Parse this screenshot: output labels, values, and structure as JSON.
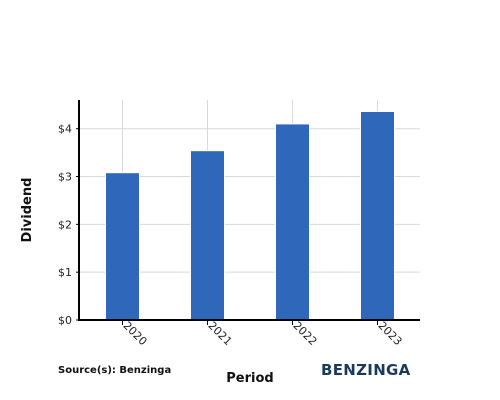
{
  "chart_data": {
    "type": "bar",
    "categories": [
      "2020",
      "2021",
      "2022",
      "2023"
    ],
    "values": [
      3.08,
      3.54,
      4.1,
      4.36
    ],
    "title": "",
    "xlabel": "Period",
    "ylabel": "Dividend",
    "ylim": [
      0,
      4.6
    ],
    "yticks": [
      0,
      1,
      2,
      3,
      4
    ],
    "ytick_labels": [
      "$0",
      "$1",
      "$2",
      "$3",
      "$4"
    ],
    "grid": true,
    "bar_color": "#2f67bb",
    "bar_edge_color": "#ffffff"
  },
  "footer": {
    "source": "Source(s): Benzinga",
    "brand": "BENZINGA"
  }
}
